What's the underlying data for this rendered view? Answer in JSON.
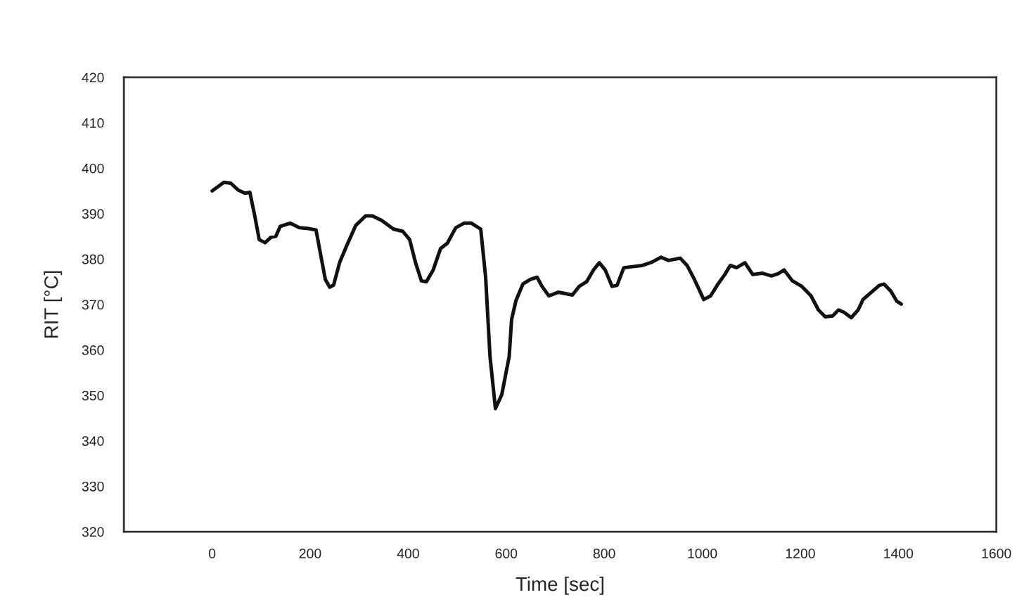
{
  "chart_data": {
    "type": "line",
    "xlabel": "Time [sec]",
    "ylabel": "RIT [°C]",
    "x": [
      0,
      24,
      38,
      53,
      67,
      77,
      87,
      96,
      108,
      120,
      130,
      139,
      159,
      178,
      197,
      212,
      221,
      231,
      240,
      248,
      260,
      274,
      293,
      313,
      327,
      346,
      370,
      389,
      403,
      415,
      427,
      437,
      451,
      466,
      480,
      497,
      514,
      529,
      548,
      558,
      567,
      578,
      591,
      606,
      611,
      620,
      634,
      649,
      663,
      673,
      687,
      706,
      721,
      735,
      749,
      764,
      778,
      790,
      802,
      816,
      826,
      840,
      855,
      878,
      897,
      916,
      931,
      955,
      969,
      984,
      1003,
      1017,
      1032,
      1046,
      1057,
      1070,
      1087,
      1103,
      1122,
      1141,
      1155,
      1167,
      1184,
      1203,
      1222,
      1237,
      1251,
      1266,
      1278,
      1289,
      1304,
      1318,
      1328,
      1347,
      1361,
      1371,
      1385,
      1397,
      1406
    ],
    "series": [
      {
        "color": "#111111",
        "values": [
          395.0,
          396.9,
          396.7,
          395.2,
          394.5,
          394.7,
          389.5,
          384.3,
          383.6,
          384.8,
          385.0,
          387.2,
          387.9,
          386.9,
          386.7,
          386.4,
          381.2,
          375.5,
          373.8,
          374.3,
          379.2,
          382.8,
          387.4,
          389.5,
          389.5,
          388.5,
          386.6,
          386.1,
          384.3,
          379.2,
          375.2,
          375.0,
          377.6,
          382.3,
          383.5,
          386.9,
          387.9,
          387.9,
          386.6,
          376.0,
          358.5,
          347.1,
          350.2,
          358.5,
          366.7,
          370.9,
          374.5,
          375.5,
          376.0,
          374.0,
          371.9,
          372.7,
          372.4,
          372.1,
          374.0,
          375.0,
          377.6,
          379.2,
          377.6,
          374.0,
          374.2,
          378.1,
          378.3,
          378.6,
          379.3,
          380.4,
          379.7,
          380.2,
          378.6,
          375.5,
          371.1,
          371.9,
          374.5,
          376.6,
          378.6,
          378.1,
          379.2,
          376.6,
          376.9,
          376.3,
          376.8,
          377.6,
          375.2,
          374.0,
          371.9,
          368.8,
          367.3,
          367.5,
          368.8,
          368.3,
          367.1,
          368.8,
          371.1,
          372.9,
          374.2,
          374.5,
          372.9,
          370.7,
          370.1
        ]
      }
    ],
    "xlim": [
      -180,
      1600
    ],
    "ylim": [
      320,
      420
    ],
    "xticks": [
      0,
      200,
      400,
      600,
      800,
      1000,
      1200,
      1400,
      1600
    ],
    "yticks": [
      320,
      330,
      340,
      350,
      360,
      370,
      380,
      390,
      400,
      410,
      420
    ]
  }
}
